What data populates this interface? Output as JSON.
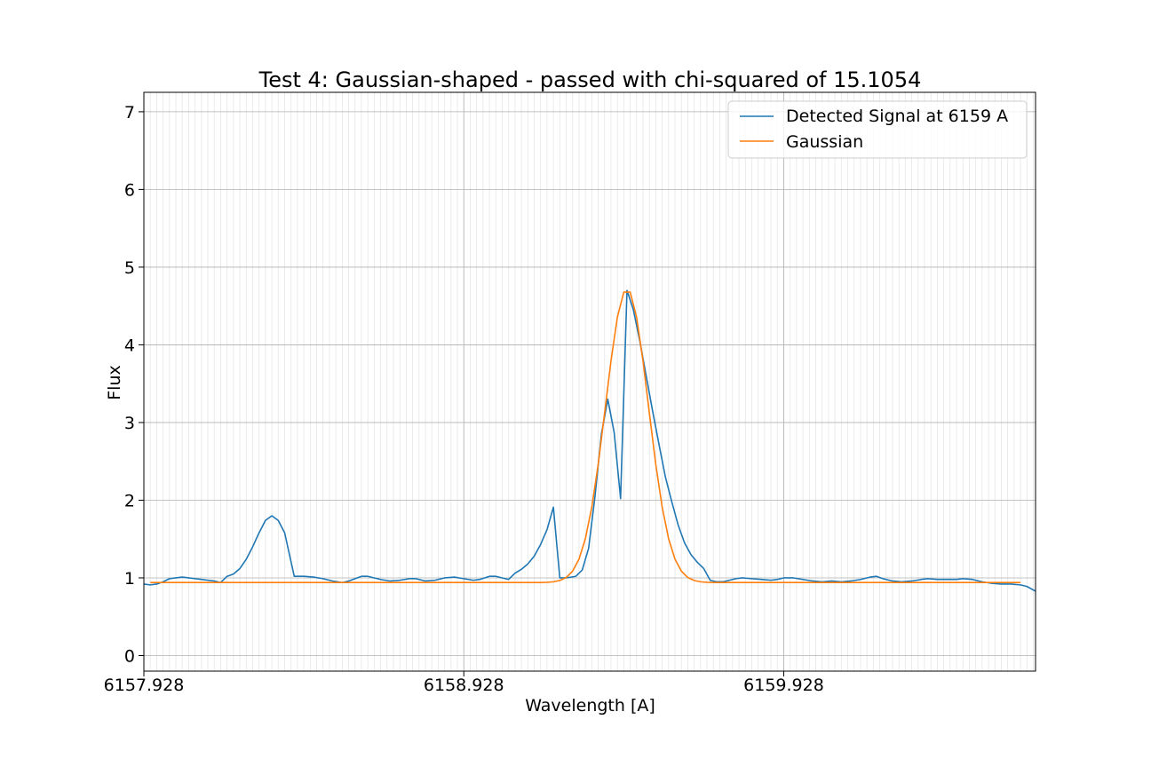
{
  "chart_data": {
    "type": "line",
    "title": "Test 4: Gaussian-shaped - passed with chi-squared of 15.1054",
    "xlabel": "Wavelength [A]",
    "ylabel": "Flux",
    "xlim": [
      6157.928,
      6160.715
    ],
    "ylim": [
      -0.2,
      7.25
    ],
    "x_ticks": [
      6157.928,
      6158.928,
      6159.928
    ],
    "x_tick_labels": [
      "6157.928",
      "6158.928",
      "6159.928"
    ],
    "x_minor_step": 0.02,
    "y_ticks": [
      0,
      1,
      2,
      3,
      4,
      5,
      6,
      7
    ],
    "y_tick_labels": [
      "0",
      "1",
      "2",
      "3",
      "4",
      "5",
      "6",
      "7"
    ],
    "grid": true,
    "legend_position": "top-right",
    "series": [
      {
        "name": "Detected Signal at 6159 A",
        "color": "#1f77b4",
        "points": [
          [
            6157.928,
            0.92
          ],
          [
            6157.948,
            0.91
          ],
          [
            6157.968,
            0.92
          ],
          [
            6157.988,
            0.95
          ],
          [
            6158.008,
            0.99
          ],
          [
            6158.028,
            1.0
          ],
          [
            6158.048,
            1.01
          ],
          [
            6158.068,
            1.0
          ],
          [
            6158.088,
            0.99
          ],
          [
            6158.108,
            0.98
          ],
          [
            6158.128,
            0.97
          ],
          [
            6158.148,
            0.96
          ],
          [
            6158.168,
            0.94
          ],
          [
            6158.188,
            1.02
          ],
          [
            6158.208,
            1.05
          ],
          [
            6158.228,
            1.12
          ],
          [
            6158.248,
            1.24
          ],
          [
            6158.268,
            1.4
          ],
          [
            6158.288,
            1.58
          ],
          [
            6158.308,
            1.74
          ],
          [
            6158.328,
            1.8
          ],
          [
            6158.348,
            1.74
          ],
          [
            6158.368,
            1.58
          ],
          [
            6158.398,
            1.02
          ],
          [
            6158.428,
            1.02
          ],
          [
            6158.458,
            1.01
          ],
          [
            6158.488,
            0.99
          ],
          [
            6158.518,
            0.96
          ],
          [
            6158.548,
            0.94
          ],
          [
            6158.568,
            0.96
          ],
          [
            6158.588,
            0.99
          ],
          [
            6158.608,
            1.02
          ],
          [
            6158.628,
            1.02
          ],
          [
            6158.648,
            1.0
          ],
          [
            6158.668,
            0.98
          ],
          [
            6158.698,
            0.96
          ],
          [
            6158.728,
            0.97
          ],
          [
            6158.758,
            0.99
          ],
          [
            6158.778,
            0.99
          ],
          [
            6158.808,
            0.96
          ],
          [
            6158.838,
            0.97
          ],
          [
            6158.868,
            1.0
          ],
          [
            6158.898,
            1.01
          ],
          [
            6158.928,
            0.99
          ],
          [
            6158.958,
            0.97
          ],
          [
            6158.978,
            0.98
          ],
          [
            6159.008,
            1.02
          ],
          [
            6159.028,
            1.02
          ],
          [
            6159.048,
            1.0
          ],
          [
            6159.068,
            0.98
          ],
          [
            6159.088,
            1.06
          ],
          [
            6159.108,
            1.11
          ],
          [
            6159.128,
            1.18
          ],
          [
            6159.148,
            1.28
          ],
          [
            6159.168,
            1.43
          ],
          [
            6159.188,
            1.62
          ],
          [
            6159.208,
            1.91
          ],
          [
            6159.228,
            1.0
          ],
          [
            6159.248,
            1.0
          ],
          [
            6159.278,
            1.02
          ],
          [
            6159.298,
            1.1
          ],
          [
            6159.318,
            1.38
          ],
          [
            6159.338,
            2.05
          ],
          [
            6159.358,
            2.85
          ],
          [
            6159.378,
            3.3
          ],
          [
            6159.398,
            2.87
          ],
          [
            6159.418,
            2.02
          ],
          [
            6159.438,
            4.7
          ],
          [
            6159.458,
            4.45
          ],
          [
            6159.478,
            4.05
          ],
          [
            6159.498,
            3.6
          ],
          [
            6159.518,
            3.15
          ],
          [
            6159.538,
            2.72
          ],
          [
            6159.558,
            2.3
          ],
          [
            6159.578,
            1.98
          ],
          [
            6159.598,
            1.68
          ],
          [
            6159.618,
            1.45
          ],
          [
            6159.638,
            1.3
          ],
          [
            6159.658,
            1.2
          ],
          [
            6159.678,
            1.12
          ],
          [
            6159.698,
            0.97
          ],
          [
            6159.718,
            0.95
          ],
          [
            6159.738,
            0.95
          ],
          [
            6159.758,
            0.97
          ],
          [
            6159.778,
            0.99
          ],
          [
            6159.798,
            1.0
          ],
          [
            6159.828,
            0.99
          ],
          [
            6159.858,
            0.98
          ],
          [
            6159.888,
            0.97
          ],
          [
            6159.908,
            0.98
          ],
          [
            6159.928,
            1.0
          ],
          [
            6159.958,
            1.0
          ],
          [
            6159.988,
            0.98
          ],
          [
            6160.018,
            0.96
          ],
          [
            6160.048,
            0.95
          ],
          [
            6160.078,
            0.96
          ],
          [
            6160.108,
            0.95
          ],
          [
            6160.138,
            0.96
          ],
          [
            6160.168,
            0.98
          ],
          [
            6160.198,
            1.01
          ],
          [
            6160.218,
            1.02
          ],
          [
            6160.238,
            0.99
          ],
          [
            6160.268,
            0.96
          ],
          [
            6160.298,
            0.95
          ],
          [
            6160.328,
            0.96
          ],
          [
            6160.358,
            0.98
          ],
          [
            6160.378,
            0.99
          ],
          [
            6160.408,
            0.98
          ],
          [
            6160.438,
            0.98
          ],
          [
            6160.468,
            0.98
          ],
          [
            6160.488,
            0.99
          ],
          [
            6160.518,
            0.98
          ],
          [
            6160.548,
            0.95
          ],
          [
            6160.578,
            0.93
          ],
          [
            6160.608,
            0.92
          ],
          [
            6160.638,
            0.92
          ],
          [
            6160.668,
            0.91
          ],
          [
            6160.688,
            0.89
          ],
          [
            6160.715,
            0.83
          ]
        ]
      },
      {
        "name": "Gaussian",
        "color": "#ff7f0e",
        "model": {
          "baseline": 0.94,
          "amplitude": 3.78,
          "center": 6159.438,
          "sigma": 0.0667,
          "x_start": 6157.948,
          "x_end": 6160.675,
          "step": 0.02
        }
      }
    ]
  }
}
